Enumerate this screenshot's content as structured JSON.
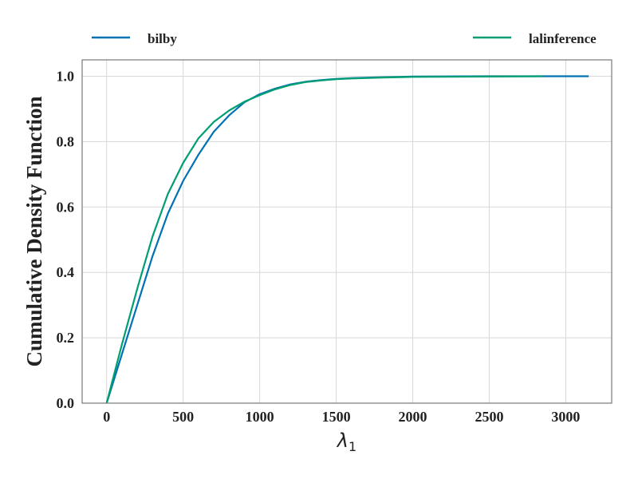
{
  "chart_data": {
    "type": "line",
    "title": "",
    "xlabel": "λ",
    "xlabel_sub": "1",
    "ylabel": "Cumulative Density Function",
    "xlim": [
      -160,
      3300
    ],
    "ylim": [
      0.0,
      1.05
    ],
    "xticks": [
      0,
      500,
      1000,
      1500,
      2000,
      2500,
      3000
    ],
    "xtick_labels": [
      "0",
      "500",
      "1000",
      "1500",
      "2000",
      "2500",
      "3000"
    ],
    "yticks": [
      0.0,
      0.2,
      0.4,
      0.6,
      0.8,
      1.0
    ],
    "ytick_labels": [
      "0.0",
      "0.2",
      "0.4",
      "0.6",
      "0.8",
      "1.0"
    ],
    "grid": true,
    "legend_placement": "top, outside plot",
    "series": [
      {
        "name": "bilby",
        "color": "#0072b2",
        "x": [
          0,
          100,
          200,
          300,
          400,
          500,
          600,
          700,
          800,
          900,
          1000,
          1100,
          1200,
          1300,
          1400,
          1500,
          1600,
          1800,
          2000,
          2500,
          3000,
          3150
        ],
        "y": [
          0.0,
          0.15,
          0.3,
          0.45,
          0.58,
          0.68,
          0.76,
          0.83,
          0.88,
          0.92,
          0.945,
          0.962,
          0.975,
          0.983,
          0.988,
          0.992,
          0.994,
          0.997,
          0.999,
          1.0,
          1.0,
          1.0
        ]
      },
      {
        "name": "lalinference",
        "color": "#009e73",
        "x": [
          0,
          100,
          200,
          300,
          400,
          500,
          600,
          700,
          800,
          900,
          1000,
          1100,
          1200,
          1300,
          1400,
          1500,
          1600,
          1800,
          2000,
          2500,
          2850
        ],
        "y": [
          0.0,
          0.18,
          0.35,
          0.51,
          0.64,
          0.735,
          0.81,
          0.86,
          0.895,
          0.922,
          0.942,
          0.96,
          0.973,
          0.982,
          0.987,
          0.991,
          0.993,
          0.996,
          0.998,
          0.999,
          1.0
        ]
      }
    ]
  }
}
